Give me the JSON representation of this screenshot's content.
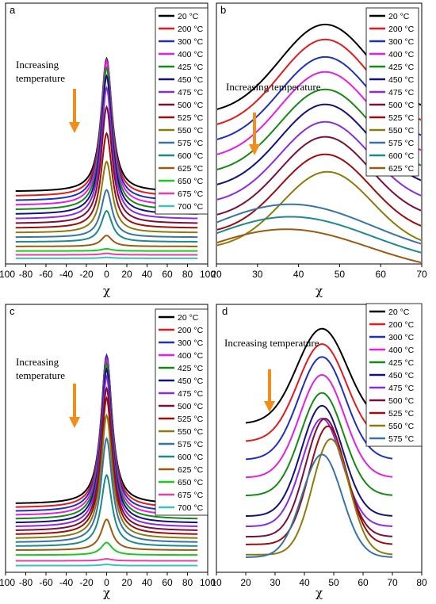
{
  "figure": {
    "background": "#ffffff",
    "arrow_color": "#f28c1a"
  },
  "chart_data": [
    {
      "panel": "a",
      "type": "line",
      "xlabel": "χ",
      "xticks": [
        "-100",
        "-80",
        "-60",
        "-40",
        "-20",
        "0",
        "20",
        "40",
        "60",
        "80",
        "100"
      ],
      "xlim": [
        -100,
        100
      ],
      "annotation": [
        "Increasing",
        "temperature"
      ],
      "legend_position": "top-right",
      "series": [
        {
          "name": "20 °C",
          "color": "#000000",
          "baseline": 0.37,
          "amp": 0.73
        },
        {
          "name": "200 °C",
          "color": "#e31a1c",
          "baseline": 0.345,
          "amp": 0.75
        },
        {
          "name": "300 °C",
          "color": "#1f2fbf",
          "baseline": 0.32,
          "amp": 0.77
        },
        {
          "name": "400 °C",
          "color": "#e41ee4",
          "baseline": 0.295,
          "amp": 0.79
        },
        {
          "name": "425 °C",
          "color": "#148a14",
          "baseline": 0.27,
          "amp": 0.78
        },
        {
          "name": "450 °C",
          "color": "#12127a",
          "baseline": 0.245,
          "amp": 0.76
        },
        {
          "name": "475 °C",
          "color": "#8a2be2",
          "baseline": 0.22,
          "amp": 0.72
        },
        {
          "name": "500 °C",
          "color": "#7a0f3a",
          "baseline": 0.195,
          "amp": 0.64
        },
        {
          "name": "525 °C",
          "color": "#9c0e0e",
          "baseline": 0.17,
          "amp": 0.52
        },
        {
          "name": "550 °C",
          "color": "#8a7c0b",
          "baseline": 0.145,
          "amp": 0.39
        },
        {
          "name": "575 °C",
          "color": "#3873a8",
          "baseline": 0.12,
          "amp": 0.26
        },
        {
          "name": "600 °C",
          "color": "#1b8a8a",
          "baseline": 0.095,
          "amp": 0.17
        },
        {
          "name": "625 °C",
          "color": "#9a5a10",
          "baseline": 0.07,
          "amp": 0.06
        },
        {
          "name": "650 °C",
          "color": "#1ec81e",
          "baseline": 0.045,
          "amp": 0.012
        },
        {
          "name": "675 °C",
          "color": "#e63fa6",
          "baseline": 0.024,
          "amp": 0.008
        },
        {
          "name": "700 °C",
          "color": "#3fbfbf",
          "baseline": 0.005,
          "amp": 0.005
        }
      ]
    },
    {
      "panel": "b",
      "type": "line",
      "xlabel": "χ",
      "xticks": [
        "20",
        "30",
        "40",
        "50",
        "60",
        "70"
      ],
      "xlim": [
        20,
        70
      ],
      "annotation": [
        "Increasing temperature"
      ],
      "legend_position": "top-right",
      "series": [
        {
          "name": "20 °C",
          "color": "#000000",
          "center": 46.5,
          "baseline": 0.58,
          "amp": 0.36,
          "width": 11
        },
        {
          "name": "200 °C",
          "color": "#e31a1c",
          "center": 46.5,
          "baseline": 0.52,
          "amp": 0.36,
          "width": 11
        },
        {
          "name": "300 °C",
          "color": "#1f2fbf",
          "center": 46.5,
          "baseline": 0.46,
          "amp": 0.35,
          "width": 11
        },
        {
          "name": "400 °C",
          "color": "#e41ee4",
          "center": 46.5,
          "baseline": 0.4,
          "amp": 0.35,
          "width": 11
        },
        {
          "name": "425 °C",
          "color": "#148a14",
          "center": 46.5,
          "baseline": 0.34,
          "amp": 0.34,
          "width": 11
        },
        {
          "name": "450 °C",
          "color": "#12127a",
          "center": 46.5,
          "baseline": 0.28,
          "amp": 0.34,
          "width": 11
        },
        {
          "name": "475 °C",
          "color": "#8a2be2",
          "center": 46.5,
          "baseline": 0.22,
          "amp": 0.33,
          "width": 11
        },
        {
          "name": "500 °C",
          "color": "#7a0f3a",
          "center": 46.5,
          "baseline": 0.16,
          "amp": 0.33,
          "width": 11
        },
        {
          "name": "525 °C",
          "color": "#9c0e0e",
          "center": 46.5,
          "baseline": 0.1,
          "amp": 0.32,
          "width": 11
        },
        {
          "name": "550 °C",
          "color": "#8a7c0b",
          "center": 47.0,
          "baseline": 0.04,
          "amp": 0.31,
          "width": 11
        },
        {
          "name": "575 °C",
          "color": "#3873a8",
          "center": 38.0,
          "baseline": 0.0,
          "amp": 0.22,
          "width": 20
        },
        {
          "name": "600 °C",
          "color": "#1b8a8a",
          "center": 38.0,
          "baseline": -0.03,
          "amp": 0.2,
          "width": 20
        },
        {
          "name": "625 °C",
          "color": "#9a5a10",
          "center": 37.0,
          "baseline": -0.06,
          "amp": 0.18,
          "width": 20
        }
      ]
    },
    {
      "panel": "c",
      "type": "line",
      "xlabel": "χ",
      "xticks": [
        "-100",
        "-80",
        "-60",
        "-40",
        "-20",
        "0",
        "20",
        "40",
        "60",
        "80",
        "100"
      ],
      "xlim": [
        -100,
        100
      ],
      "annotation": [
        "Increasing",
        "temperature"
      ],
      "legend_position": "top-right",
      "series": [
        {
          "name": "20 °C",
          "color": "#000000",
          "baseline": 0.33,
          "amp": 0.77
        },
        {
          "name": "200 °C",
          "color": "#e31a1c",
          "baseline": 0.31,
          "amp": 0.79
        },
        {
          "name": "300 °C",
          "color": "#1f2fbf",
          "baseline": 0.29,
          "amp": 0.81
        },
        {
          "name": "400 °C",
          "color": "#e41ee4",
          "baseline": 0.27,
          "amp": 0.81
        },
        {
          "name": "425 °C",
          "color": "#148a14",
          "baseline": 0.25,
          "amp": 0.81
        },
        {
          "name": "450 °C",
          "color": "#12127a",
          "baseline": 0.23,
          "amp": 0.8
        },
        {
          "name": "475 °C",
          "color": "#8a2be2",
          "baseline": 0.21,
          "amp": 0.78
        },
        {
          "name": "500 °C",
          "color": "#7a0f3a",
          "baseline": 0.19,
          "amp": 0.74
        },
        {
          "name": "525 °C",
          "color": "#9c0e0e",
          "baseline": 0.17,
          "amp": 0.71
        },
        {
          "name": "550 °C",
          "color": "#8a7c0b",
          "baseline": 0.15,
          "amp": 0.64
        },
        {
          "name": "575 °C",
          "color": "#3873a8",
          "baseline": 0.13,
          "amp": 0.54
        },
        {
          "name": "600 °C",
          "color": "#1b8a8a",
          "baseline": 0.11,
          "amp": 0.37
        },
        {
          "name": "625 °C",
          "color": "#9a5a10",
          "baseline": 0.09,
          "amp": 0.16
        },
        {
          "name": "650 °C",
          "color": "#1ec81e",
          "baseline": 0.065,
          "amp": 0.065
        },
        {
          "name": "675 °C",
          "color": "#e63fa6",
          "baseline": 0.035,
          "amp": 0.01
        },
        {
          "name": "700 °C",
          "color": "#3fbfbf",
          "baseline": 0.01,
          "amp": 0.006
        }
      ]
    },
    {
      "panel": "d",
      "type": "line",
      "xlabel": "χ",
      "xticks": [
        "10",
        "20",
        "30",
        "40",
        "50",
        "60",
        "70",
        "80"
      ],
      "xlim": [
        10,
        80
      ],
      "annotation": [
        "Increasing temperature"
      ],
      "legend_position": "top-right",
      "series": [
        {
          "name": "20 °C",
          "color": "#000000",
          "center": 46.0,
          "baseline": 0.56,
          "amp": 0.37,
          "width": 8.5
        },
        {
          "name": "200 °C",
          "color": "#e31a1c",
          "center": 46.0,
          "baseline": 0.49,
          "amp": 0.38,
          "width": 8.2
        },
        {
          "name": "300 °C",
          "color": "#1f2fbf",
          "center": 46.0,
          "baseline": 0.42,
          "amp": 0.4,
          "width": 7.9
        },
        {
          "name": "400 °C",
          "color": "#e41ee4",
          "center": 46.0,
          "baseline": 0.35,
          "amp": 0.4,
          "width": 7.6
        },
        {
          "name": "425 °C",
          "color": "#148a14",
          "center": 46.0,
          "baseline": 0.28,
          "amp": 0.4,
          "width": 7.3
        },
        {
          "name": "450 °C",
          "color": "#12127a",
          "center": 46.0,
          "baseline": 0.2,
          "amp": 0.43,
          "width": 7.0
        },
        {
          "name": "475 °C",
          "color": "#8a2be2",
          "center": 46.0,
          "baseline": 0.16,
          "amp": 0.42,
          "width": 6.8
        },
        {
          "name": "500 °C",
          "color": "#7a0f3a",
          "center": 47.0,
          "baseline": 0.12,
          "amp": 0.46,
          "width": 6.6
        },
        {
          "name": "525 °C",
          "color": "#9c0e0e",
          "center": 48.0,
          "baseline": 0.09,
          "amp": 0.46,
          "width": 6.4
        },
        {
          "name": "550 °C",
          "color": "#8a7c0b",
          "center": 49.0,
          "baseline": 0.05,
          "amp": 0.45,
          "width": 6.2
        },
        {
          "name": "575 °C",
          "color": "#3873a8",
          "center": 46.0,
          "baseline": 0.04,
          "amp": 0.4,
          "width": 6.8
        }
      ]
    }
  ]
}
